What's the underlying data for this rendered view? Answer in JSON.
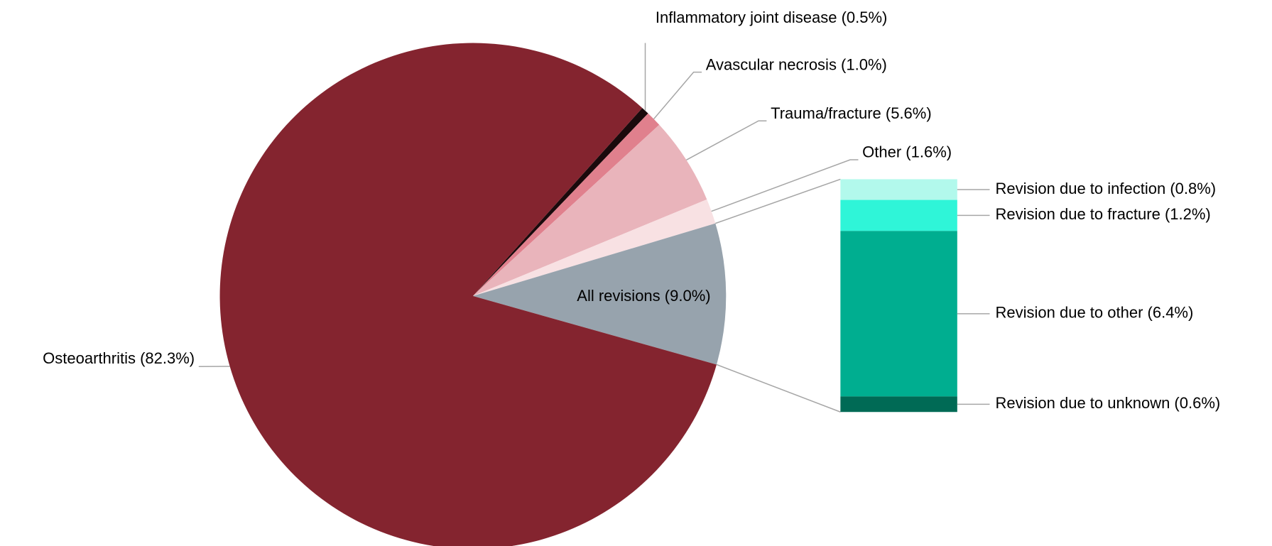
{
  "chart_data": {
    "type": "pie",
    "labels": [
      "Inflammatory joint disease (0.5%)",
      "Avascular necrosis (1.0%)",
      "Trauma/fracture (5.6%)",
      "Other (1.6%)",
      "All revisions (9.0%)",
      "Osteoarthritis (82.3%)"
    ],
    "values": [
      0.5,
      1.0,
      5.6,
      1.6,
      9.0,
      82.3
    ],
    "colors": [
      "#1a0a0c",
      "#e0808d",
      "#e9b4bb",
      "#f8e1e3",
      "#97a3ad",
      "#84242f"
    ],
    "breakdown": {
      "labels": [
        "Revision due to infection (0.8%)",
        "Revision due to fracture (1.2%)",
        "Revision due to other (6.4%)",
        "Revision due to unknown (0.6%)"
      ],
      "values": [
        0.8,
        1.2,
        6.4,
        0.6
      ],
      "colors": [
        "#b2f9ec",
        "#2ff5d8",
        "#00ae90",
        "#006a55"
      ]
    }
  }
}
